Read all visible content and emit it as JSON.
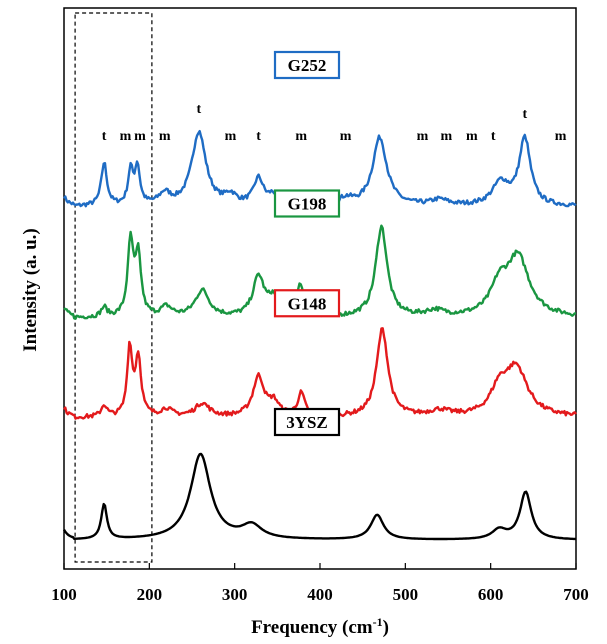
{
  "chart_data": {
    "type": "line",
    "title": "",
    "xlabel": "Frequency (cm",
    "xlabel_sup": "-1",
    "xlabel_close": ")",
    "ylabel": "Intensity (a. u.)",
    "xlim": [
      100,
      700
    ],
    "x_ticks": [
      100,
      200,
      300,
      400,
      500,
      600,
      700
    ],
    "y_ticks": "none",
    "grid": false,
    "highlight_region": [
      113,
      203
    ],
    "series": [
      {
        "name": "G252",
        "color": "#1f6cc4",
        "box_color": "#1f6cc4",
        "offset": 3.45,
        "baseline": 0.08,
        "peaks": [
          [
            147,
            0.45,
            4
          ],
          [
            178,
            0.36,
            3.5
          ],
          [
            186,
            0.4,
            3.5
          ],
          [
            218,
            0.12,
            8
          ],
          [
            258,
            0.78,
            10
          ],
          [
            295,
            0.1,
            8
          ],
          [
            328,
            0.28,
            7
          ],
          [
            345,
            0.1,
            6
          ],
          [
            378,
            0.1,
            5
          ],
          [
            430,
            0.07,
            10
          ],
          [
            470,
            0.72,
            10
          ],
          [
            540,
            0.06,
            12
          ],
          [
            612,
            0.24,
            12
          ],
          [
            640,
            0.7,
            8
          ]
        ],
        "labels": [
          [
            147,
            "t"
          ],
          [
            172,
            "m"
          ],
          [
            189,
            "m"
          ],
          [
            218,
            "m"
          ],
          [
            258,
            "t"
          ],
          [
            295,
            "m"
          ],
          [
            328,
            "t"
          ],
          [
            378,
            "m"
          ],
          [
            430,
            "m"
          ],
          [
            520,
            "m"
          ],
          [
            548,
            "m"
          ],
          [
            578,
            "m"
          ],
          [
            603,
            "t"
          ],
          [
            640,
            "t"
          ],
          [
            682,
            "m"
          ]
        ]
      },
      {
        "name": "G198",
        "color": "#1a9641",
        "box_color": "#1a9641",
        "offset": 2.3,
        "baseline": 0.06,
        "peaks": [
          [
            147,
            0.1,
            4
          ],
          [
            178,
            0.78,
            4
          ],
          [
            187,
            0.62,
            4
          ],
          [
            220,
            0.1,
            8
          ],
          [
            262,
            0.28,
            10
          ],
          [
            328,
            0.42,
            8
          ],
          [
            345,
            0.18,
            7
          ],
          [
            377,
            0.32,
            5
          ],
          [
            472,
            0.95,
            8
          ],
          [
            535,
            0.06,
            12
          ],
          [
            610,
            0.28,
            12
          ],
          [
            632,
            0.62,
            16
          ]
        ],
        "labels": []
      },
      {
        "name": "G148",
        "color": "#e31a1c",
        "box_color": "#e31a1c",
        "offset": 1.25,
        "baseline": 0.06,
        "peaks": [
          [
            147,
            0.12,
            4
          ],
          [
            177,
            0.72,
            3.5
          ],
          [
            187,
            0.62,
            4
          ],
          [
            220,
            0.08,
            8
          ],
          [
            262,
            0.14,
            10
          ],
          [
            328,
            0.42,
            8
          ],
          [
            346,
            0.14,
            7
          ],
          [
            378,
            0.24,
            5
          ],
          [
            473,
            0.92,
            8
          ],
          [
            540,
            0.06,
            14
          ],
          [
            610,
            0.25,
            12
          ],
          [
            630,
            0.5,
            16
          ]
        ],
        "labels": []
      },
      {
        "name": "3YSZ",
        "color": "#000000",
        "box_color": "#000000",
        "offset": 0.0,
        "baseline": 0.02,
        "peaks": [
          [
            147,
            0.37,
            4
          ],
          [
            260,
            0.9,
            14
          ],
          [
            320,
            0.14,
            14
          ],
          [
            467,
            0.26,
            9
          ],
          [
            610,
            0.1,
            10
          ],
          [
            641,
            0.5,
            8
          ]
        ],
        "labels": []
      }
    ]
  }
}
